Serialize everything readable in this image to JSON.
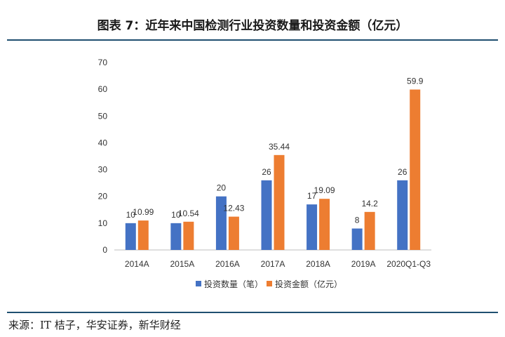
{
  "header": {
    "title": "图表 7：近年来中国检测行业投资数量和投资金额（亿元）"
  },
  "footer": {
    "source": "来源：IT 桔子，华安证券，新华财经"
  },
  "colors": {
    "series1": "#4472C4",
    "series2": "#ED7D31",
    "rule": "#1f4f70",
    "axis": "#bfbfbf"
  },
  "chart_data": {
    "type": "bar",
    "categories": [
      "2014A",
      "2015A",
      "2016A",
      "2017A",
      "2018A",
      "2019A",
      "2020Q1-Q3"
    ],
    "series": [
      {
        "name": "投资数量（笔）",
        "values": [
          10,
          10,
          20,
          26,
          17,
          8,
          26
        ],
        "labels": [
          "10",
          "10",
          "20",
          "26",
          "17",
          "8",
          "26"
        ]
      },
      {
        "name": "投资金额（亿元）",
        "values": [
          10.99,
          10.54,
          12.43,
          35.44,
          19.09,
          14.2,
          59.9
        ],
        "labels": [
          "10.99",
          "10.54",
          "12.43",
          "35.44",
          "19.09",
          "14.2",
          "59.9"
        ]
      }
    ],
    "yticks": [
      "0",
      "10",
      "20",
      "30",
      "40",
      "50",
      "60",
      "70"
    ],
    "ylim": [
      0,
      70
    ],
    "grid": false,
    "legend": "bottom"
  }
}
